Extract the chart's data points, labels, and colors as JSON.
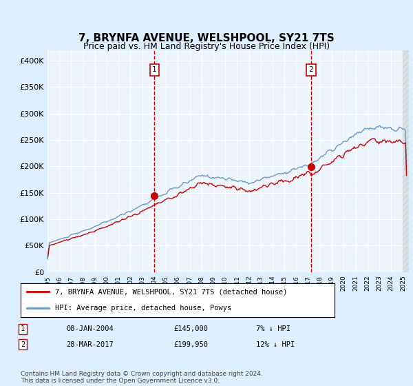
{
  "title": "7, BRYNFA AVENUE, WELSHPOOL, SY21 7TS",
  "subtitle": "Price paid vs. HM Land Registry's House Price Index (HPI)",
  "xlim_start": 1995.0,
  "xlim_end": 2025.5,
  "ylim": [
    0,
    420000
  ],
  "yticks": [
    0,
    50000,
    100000,
    150000,
    200000,
    250000,
    300000,
    350000,
    400000
  ],
  "ytick_labels": [
    "£0",
    "£50K",
    "£100K",
    "£150K",
    "£200K",
    "£250K",
    "£300K",
    "£350K",
    "£400K"
  ],
  "hpi_color": "#6699cc",
  "price_color": "#cc0000",
  "marker_color": "#cc0000",
  "vline_color": "#cc0000",
  "background_color": "#ddeeff",
  "plot_bg_color": "#eef4fb",
  "grid_color": "#ffffff",
  "sale1_x": 2004.03,
  "sale1_y": 145000,
  "sale2_x": 2017.24,
  "sale2_y": 199950,
  "legend_line1": "7, BRYNFA AVENUE, WELSHPOOL, SY21 7TS (detached house)",
  "legend_line2": "HPI: Average price, detached house, Powys",
  "table_row1": [
    "1",
    "08-JAN-2004",
    "£145,000",
    "7% ↓ HPI"
  ],
  "table_row2": [
    "2",
    "28-MAR-2017",
    "£199,950",
    "12% ↓ HPI"
  ],
  "footer": "Contains HM Land Registry data © Crown copyright and database right 2024.\nThis data is licensed under the Open Government Licence v3.0.",
  "title_fontsize": 11,
  "subtitle_fontsize": 9,
  "axis_fontsize": 8
}
